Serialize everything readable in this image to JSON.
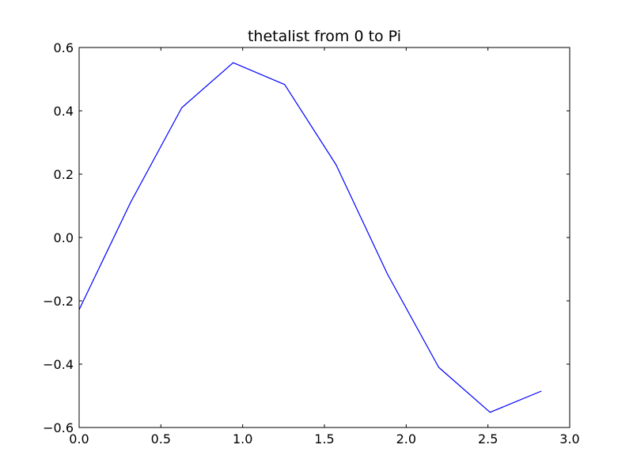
{
  "chart_data": {
    "type": "line",
    "title": "thetalist from 0 to Pi",
    "xlabel": "",
    "ylabel": "",
    "xlim": [
      0.0,
      3.0
    ],
    "ylim": [
      -0.6,
      0.6
    ],
    "x_ticks": [
      0.0,
      0.5,
      1.0,
      1.5,
      2.0,
      2.5,
      3.0
    ],
    "x_tick_labels": [
      "0.0",
      "0.5",
      "1.0",
      "1.5",
      "2.0",
      "2.5",
      "3.0"
    ],
    "y_ticks": [
      0.6,
      0.4,
      0.2,
      0.0,
      -0.2,
      -0.4,
      -0.6
    ],
    "y_tick_labels": [
      "0.6",
      "0.4",
      "0.2",
      "0.0",
      "−0.2",
      "−0.4",
      "−0.6"
    ],
    "grid": false,
    "series": [
      {
        "color": "#0000ff",
        "x": [
          0.0,
          0.314,
          0.628,
          0.942,
          1.257,
          1.571,
          1.885,
          2.199,
          2.513,
          2.827
        ],
        "y": [
          -0.228,
          0.11,
          0.41,
          0.552,
          0.483,
          0.23,
          -0.115,
          -0.41,
          -0.552,
          -0.485
        ]
      }
    ]
  }
}
